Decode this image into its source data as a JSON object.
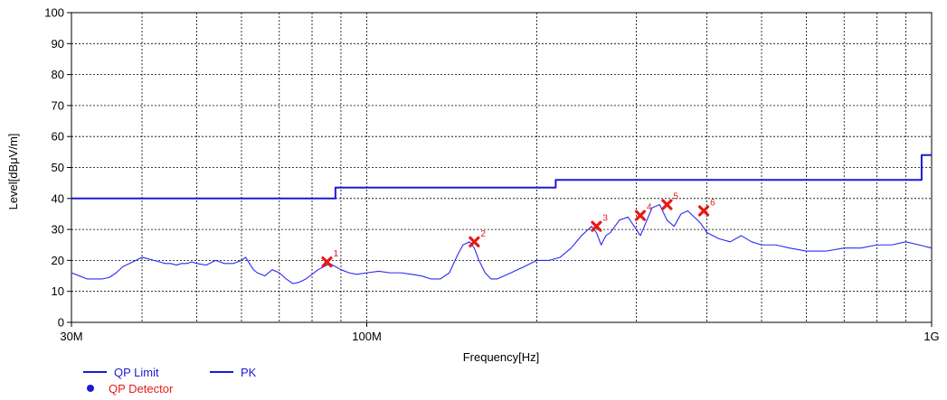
{
  "chart_data": {
    "type": "line",
    "xscale": "log",
    "xlabel": "Frequency[Hz]",
    "ylabel": "Level[dBμV/m]",
    "xlim": [
      30000000,
      1000000000
    ],
    "ylim": [
      0,
      100
    ],
    "grid": true,
    "x_ticks": [
      {
        "value": 30000000,
        "label": "30M"
      },
      {
        "value": 100000000,
        "label": "100M"
      },
      {
        "value": 1000000000,
        "label": "1G"
      }
    ],
    "y_ticks": [
      0,
      10,
      20,
      30,
      40,
      50,
      60,
      70,
      80,
      90,
      100
    ],
    "colors": {
      "limit": "#1a1ad6",
      "pk": "#2a2aee",
      "marker": "#e41a1a",
      "grid": "#000000"
    },
    "series": [
      {
        "name": "QP Limit",
        "type": "step",
        "x": [
          30000000,
          88000000,
          88000000,
          216000000,
          216000000,
          960000000,
          960000000,
          1000000000
        ],
        "y": [
          40,
          40,
          43.5,
          43.5,
          46,
          46,
          54,
          54
        ]
      },
      {
        "name": "PK",
        "type": "line",
        "x": [
          30000000,
          31000000,
          32000000,
          33000000,
          34000000,
          35000000,
          36000000,
          37000000,
          38000000,
          39000000,
          40000000,
          41000000,
          42000000,
          43000000,
          44000000,
          45000000,
          46000000,
          47000000,
          48000000,
          49000000,
          50000000,
          52000000,
          54000000,
          56000000,
          58000000,
          60000000,
          61000000,
          62000000,
          63000000,
          64000000,
          66000000,
          68000000,
          70000000,
          72000000,
          74000000,
          76000000,
          78000000,
          80000000,
          82000000,
          84000000,
          86000000,
          88000000,
          90000000,
          93000000,
          96000000,
          100000000,
          105000000,
          110000000,
          115000000,
          120000000,
          125000000,
          130000000,
          135000000,
          140000000,
          145000000,
          148000000,
          152000000,
          155000000,
          158000000,
          162000000,
          166000000,
          170000000,
          175000000,
          180000000,
          190000000,
          200000000,
          210000000,
          220000000,
          230000000,
          240000000,
          250000000,
          255000000,
          260000000,
          265000000,
          270000000,
          280000000,
          290000000,
          300000000,
          305000000,
          310000000,
          320000000,
          330000000,
          340000000,
          350000000,
          360000000,
          370000000,
          380000000,
          390000000,
          400000000,
          420000000,
          440000000,
          460000000,
          480000000,
          500000000,
          530000000,
          560000000,
          600000000,
          650000000,
          700000000,
          750000000,
          800000000,
          850000000,
          900000000,
          950000000,
          1000000000
        ],
        "y": [
          16,
          15,
          14,
          14,
          14,
          14.5,
          16,
          18,
          19,
          20,
          21,
          20.5,
          20,
          19.5,
          19,
          19,
          18.5,
          19,
          19,
          19.5,
          19,
          18.5,
          20,
          19,
          19,
          20,
          21,
          19,
          17,
          16,
          15,
          17,
          16,
          14,
          12.5,
          13,
          14,
          15.5,
          17,
          18,
          19,
          18,
          17,
          16,
          15.5,
          16,
          16.5,
          16,
          16,
          15.5,
          15,
          14,
          14,
          16,
          22,
          25,
          26,
          24,
          20,
          16,
          14,
          14,
          15,
          16,
          18,
          20,
          20,
          21,
          24,
          28,
          31,
          29,
          25,
          28,
          29,
          33,
          34,
          30,
          28,
          31,
          37,
          38,
          33,
          31,
          35,
          36,
          34,
          32,
          29,
          27,
          26,
          28,
          26,
          25,
          25,
          24,
          23,
          23,
          24,
          24,
          25,
          25,
          26,
          25,
          24
        ]
      }
    ],
    "markers": [
      {
        "label": "1",
        "x": 85000000,
        "y": 19.5
      },
      {
        "label": "2",
        "x": 155000000,
        "y": 26
      },
      {
        "label": "3",
        "x": 255000000,
        "y": 31
      },
      {
        "label": "4",
        "x": 305000000,
        "y": 34.5
      },
      {
        "label": "5",
        "x": 340000000,
        "y": 38
      },
      {
        "label": "6",
        "x": 395000000,
        "y": 36
      }
    ],
    "legend": [
      {
        "label": "QP Limit",
        "marker": "line",
        "color": "#1a1ad6"
      },
      {
        "label": "PK",
        "marker": "line",
        "color": "#1a1ad6"
      },
      {
        "label": "QP Detector",
        "marker": "dot",
        "color": "#1a1ad6",
        "text_color": "#e41a1a"
      }
    ]
  }
}
